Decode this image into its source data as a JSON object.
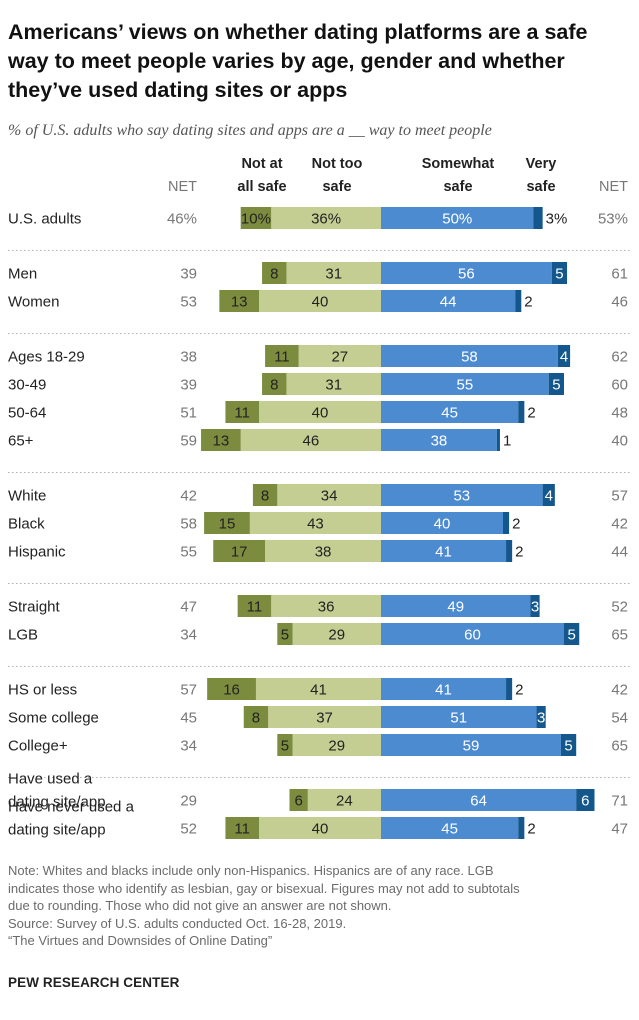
{
  "title": "Americans’ views on whether dating platforms are a safe way to meet people varies by age, gender and whether they’ve used dating sites or apps",
  "subtitle": "% of U.S. adults who say dating sites and apps are a __ way to meet people",
  "colors": {
    "not_at_all_safe": "#7c8c3e",
    "not_too_safe": "#c5ce92",
    "somewhat_safe": "#4d8bd1",
    "very_safe": "#14578c",
    "divider": "#b0b0b0"
  },
  "chart_data": {
    "type": "bar",
    "orientation": "horizontal",
    "stacking": "diverging",
    "column_headers": {
      "net_left": "NET",
      "not_at_all_safe": [
        "Not at",
        "all safe"
      ],
      "not_too_safe": [
        "Not too",
        "safe"
      ],
      "somewhat_safe": [
        "Somewhat",
        "safe"
      ],
      "very_safe": [
        "Very",
        "safe"
      ],
      "net_right": "NET"
    },
    "series_names": [
      "Not at all safe",
      "Not too safe",
      "Somewhat safe",
      "Very safe"
    ],
    "groups": [
      {
        "rows": [
          {
            "label": [
              "U.S. adults"
            ],
            "net_unsafe": "46%",
            "not_at_all_safe": 10,
            "not_too_safe": 36,
            "somewhat_safe": 50,
            "very_safe": 3,
            "net_safe": "53%",
            "percent_signs": true
          }
        ]
      },
      {
        "rows": [
          {
            "label": [
              "Men"
            ],
            "net_unsafe": "39",
            "not_at_all_safe": 8,
            "not_too_safe": 31,
            "somewhat_safe": 56,
            "very_safe": 5,
            "net_safe": "61"
          },
          {
            "label": [
              "Women"
            ],
            "net_unsafe": "53",
            "not_at_all_safe": 13,
            "not_too_safe": 40,
            "somewhat_safe": 44,
            "very_safe": 2,
            "net_safe": "46"
          }
        ]
      },
      {
        "rows": [
          {
            "label": [
              "Ages 18-29"
            ],
            "net_unsafe": "38",
            "not_at_all_safe": 11,
            "not_too_safe": 27,
            "somewhat_safe": 58,
            "very_safe": 4,
            "net_safe": "62"
          },
          {
            "label": [
              "30-49"
            ],
            "net_unsafe": "39",
            "not_at_all_safe": 8,
            "not_too_safe": 31,
            "somewhat_safe": 55,
            "very_safe": 5,
            "net_safe": "60"
          },
          {
            "label": [
              "50-64"
            ],
            "net_unsafe": "51",
            "not_at_all_safe": 11,
            "not_too_safe": 40,
            "somewhat_safe": 45,
            "very_safe": 2,
            "net_safe": "48"
          },
          {
            "label": [
              "65+"
            ],
            "net_unsafe": "59",
            "not_at_all_safe": 13,
            "not_too_safe": 46,
            "somewhat_safe": 38,
            "very_safe": 1,
            "net_safe": "40"
          }
        ]
      },
      {
        "rows": [
          {
            "label": [
              "White"
            ],
            "net_unsafe": "42",
            "not_at_all_safe": 8,
            "not_too_safe": 34,
            "somewhat_safe": 53,
            "very_safe": 4,
            "net_safe": "57"
          },
          {
            "label": [
              "Black"
            ],
            "net_unsafe": "58",
            "not_at_all_safe": 15,
            "not_too_safe": 43,
            "somewhat_safe": 40,
            "very_safe": 2,
            "net_safe": "42"
          },
          {
            "label": [
              "Hispanic"
            ],
            "net_unsafe": "55",
            "not_at_all_safe": 17,
            "not_too_safe": 38,
            "somewhat_safe": 41,
            "very_safe": 2,
            "net_safe": "44"
          }
        ]
      },
      {
        "rows": [
          {
            "label": [
              "Straight"
            ],
            "net_unsafe": "47",
            "not_at_all_safe": 11,
            "not_too_safe": 36,
            "somewhat_safe": 49,
            "very_safe": 3,
            "net_safe": "52"
          },
          {
            "label": [
              "LGB"
            ],
            "net_unsafe": "34",
            "not_at_all_safe": 5,
            "not_too_safe": 29,
            "somewhat_safe": 60,
            "very_safe": 5,
            "net_safe": "65"
          }
        ]
      },
      {
        "rows": [
          {
            "label": [
              "HS or less"
            ],
            "net_unsafe": "57",
            "not_at_all_safe": 16,
            "not_too_safe": 41,
            "somewhat_safe": 41,
            "very_safe": 2,
            "net_safe": "42"
          },
          {
            "label": [
              "Some college"
            ],
            "net_unsafe": "45",
            "not_at_all_safe": 8,
            "not_too_safe": 37,
            "somewhat_safe": 51,
            "very_safe": 3,
            "net_safe": "54"
          },
          {
            "label": [
              "College+"
            ],
            "net_unsafe": "34",
            "not_at_all_safe": 5,
            "not_too_safe": 29,
            "somewhat_safe": 59,
            "very_safe": 5,
            "net_safe": "65"
          }
        ]
      },
      {
        "rows": [
          {
            "label": [
              "Have used a",
              "dating site/app"
            ],
            "net_unsafe": "29",
            "not_at_all_safe": 6,
            "not_too_safe": 24,
            "somewhat_safe": 64,
            "very_safe": 6,
            "net_safe": "71"
          },
          {
            "label": [
              "Have never used a",
              "dating site/app"
            ],
            "net_unsafe": "52",
            "not_at_all_safe": 11,
            "not_too_safe": 40,
            "somewhat_safe": 45,
            "very_safe": 2,
            "net_safe": "47"
          }
        ]
      }
    ]
  },
  "notes": [
    "Note: Whites and blacks include only non-Hispanics. Hispanics are of any race. LGB",
    "indicates those who identify as lesbian, gay or bisexual. Figures may not add to subtotals",
    "due to rounding. Those who did not give an answer are not shown.",
    "Source: Survey of U.S. adults conducted Oct. 16-28, 2019.",
    "“The Virtues and Downsides of Online Dating”"
  ],
  "brand": "PEW RESEARCH CENTER"
}
